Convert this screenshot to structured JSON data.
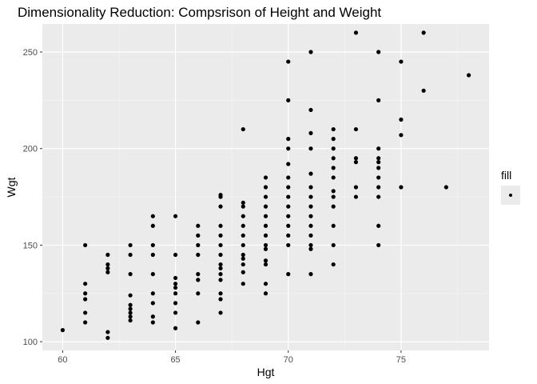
{
  "chart_data": {
    "type": "scatter",
    "title": "Dimensionality Reduction: Compsrison of Height and Weight",
    "xlabel": "Hgt",
    "ylabel": "Wgt",
    "xlim": [
      59.1,
      78.9
    ],
    "ylim": [
      95.5,
      264.5
    ],
    "x_ticks": [
      60,
      65,
      70,
      75
    ],
    "y_ticks": [
      100,
      150,
      200,
      250
    ],
    "grid": true,
    "background": "#ebebeb",
    "point_color": "#000000",
    "legend": {
      "title": "fill",
      "placement": "right",
      "key_background": "#ebebeb"
    },
    "points": [
      [
        60,
        106
      ],
      [
        61,
        150
      ],
      [
        61,
        130
      ],
      [
        61,
        125
      ],
      [
        61,
        122
      ],
      [
        61,
        115
      ],
      [
        61,
        110
      ],
      [
        62,
        145
      ],
      [
        62,
        140
      ],
      [
        62,
        138
      ],
      [
        62,
        136
      ],
      [
        62,
        105
      ],
      [
        62,
        102
      ],
      [
        63,
        150
      ],
      [
        63,
        145
      ],
      [
        63,
        135
      ],
      [
        63,
        124
      ],
      [
        63,
        119
      ],
      [
        63,
        117
      ],
      [
        63,
        115
      ],
      [
        63,
        113
      ],
      [
        63,
        111
      ],
      [
        64,
        165
      ],
      [
        64,
        160
      ],
      [
        64,
        150
      ],
      [
        64,
        145
      ],
      [
        64,
        135
      ],
      [
        64,
        125
      ],
      [
        64,
        120
      ],
      [
        64,
        113
      ],
      [
        64,
        110
      ],
      [
        65,
        165
      ],
      [
        65,
        145
      ],
      [
        65,
        133
      ],
      [
        65,
        130
      ],
      [
        65,
        128
      ],
      [
        65,
        125
      ],
      [
        65,
        120
      ],
      [
        65,
        115
      ],
      [
        65,
        107
      ],
      [
        66,
        160
      ],
      [
        66,
        155
      ],
      [
        66,
        150
      ],
      [
        66,
        145
      ],
      [
        66,
        135
      ],
      [
        66,
        132
      ],
      [
        66,
        125
      ],
      [
        66,
        110
      ],
      [
        67,
        176
      ],
      [
        67,
        175
      ],
      [
        67,
        170
      ],
      [
        67,
        160
      ],
      [
        67,
        155
      ],
      [
        67,
        150
      ],
      [
        67,
        145
      ],
      [
        67,
        140
      ],
      [
        67,
        138
      ],
      [
        67,
        135
      ],
      [
        67,
        132
      ],
      [
        67,
        125
      ],
      [
        67,
        122
      ],
      [
        67,
        115
      ],
      [
        68,
        210
      ],
      [
        68,
        172
      ],
      [
        68,
        170
      ],
      [
        68,
        165
      ],
      [
        68,
        160
      ],
      [
        68,
        155
      ],
      [
        68,
        150
      ],
      [
        68,
        145
      ],
      [
        68,
        143
      ],
      [
        68,
        140
      ],
      [
        68,
        136
      ],
      [
        68,
        130
      ],
      [
        69,
        185
      ],
      [
        69,
        180
      ],
      [
        69,
        175
      ],
      [
        69,
        170
      ],
      [
        69,
        165
      ],
      [
        69,
        160
      ],
      [
        69,
        155
      ],
      [
        69,
        150
      ],
      [
        69,
        148
      ],
      [
        69,
        142
      ],
      [
        69,
        140
      ],
      [
        69,
        130
      ],
      [
        69,
        125
      ],
      [
        70,
        245
      ],
      [
        70,
        225
      ],
      [
        70,
        205
      ],
      [
        70,
        200
      ],
      [
        70,
        192
      ],
      [
        70,
        185
      ],
      [
        70,
        180
      ],
      [
        70,
        175
      ],
      [
        70,
        170
      ],
      [
        70,
        165
      ],
      [
        70,
        160
      ],
      [
        70,
        155
      ],
      [
        70,
        150
      ],
      [
        70,
        135
      ],
      [
        71,
        250
      ],
      [
        71,
        220
      ],
      [
        71,
        208
      ],
      [
        71,
        200
      ],
      [
        71,
        187
      ],
      [
        71,
        180
      ],
      [
        71,
        175
      ],
      [
        71,
        170
      ],
      [
        71,
        165
      ],
      [
        71,
        160
      ],
      [
        71,
        155
      ],
      [
        71,
        150
      ],
      [
        71,
        148
      ],
      [
        71,
        135
      ],
      [
        72,
        210
      ],
      [
        72,
        205
      ],
      [
        72,
        200
      ],
      [
        72,
        195
      ],
      [
        72,
        190
      ],
      [
        72,
        185
      ],
      [
        72,
        178
      ],
      [
        72,
        175
      ],
      [
        72,
        170
      ],
      [
        72,
        160
      ],
      [
        72,
        150
      ],
      [
        72,
        140
      ],
      [
        73,
        260
      ],
      [
        73,
        210
      ],
      [
        73,
        195
      ],
      [
        73,
        193
      ],
      [
        73,
        180
      ],
      [
        73,
        175
      ],
      [
        74,
        250
      ],
      [
        74,
        225
      ],
      [
        74,
        200
      ],
      [
        74,
        195
      ],
      [
        74,
        193
      ],
      [
        74,
        190
      ],
      [
        74,
        185
      ],
      [
        74,
        180
      ],
      [
        74,
        175
      ],
      [
        74,
        160
      ],
      [
        74,
        150
      ],
      [
        75,
        245
      ],
      [
        75,
        215
      ],
      [
        75,
        207
      ],
      [
        75,
        180
      ],
      [
        76,
        260
      ],
      [
        76,
        230
      ],
      [
        77,
        180
      ],
      [
        78,
        238
      ]
    ]
  }
}
